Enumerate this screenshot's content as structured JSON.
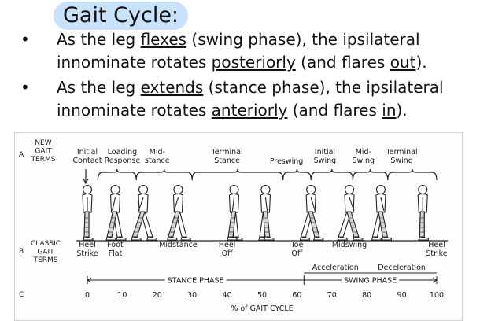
{
  "title": "Gait Cycle:",
  "bullets": [
    {
      "line1": [
        {
          "t": "As the leg ",
          "u": false
        },
        {
          "t": "flexes",
          "u": true
        },
        {
          "t": " (swing phase), the ipsilateral",
          "u": false
        }
      ],
      "line2": [
        {
          "t": "innominate rotates ",
          "u": false
        },
        {
          "t": "posteriorly",
          "u": true
        },
        {
          "t": " (and flares ",
          "u": false
        },
        {
          "t": "out",
          "u": true
        },
        {
          "t": ").",
          "u": false
        }
      ]
    },
    {
      "line1": [
        {
          "t": "As the leg ",
          "u": false
        },
        {
          "t": "extends",
          "u": true
        },
        {
          "t": " (stance phase), the ipsilateral",
          "u": false
        }
      ],
      "line2": [
        {
          "t": "innominate rotates ",
          "u": false
        },
        {
          "t": "anteriorly",
          "u": true
        },
        {
          "t": " (and flares ",
          "u": false
        },
        {
          "t": "in",
          "u": true
        },
        {
          "t": ").",
          "u": false
        }
      ]
    }
  ],
  "figure": {
    "row_a_letter": "A",
    "row_b_letter": "B",
    "row_c_letter": "C",
    "new_terms_heading": [
      "NEW",
      "GAIT",
      "TERMS"
    ],
    "new_terms": [
      {
        "lines": [
          "Initial",
          "Contact"
        ],
        "pct": 0
      },
      {
        "lines": [
          "Loading",
          "Response"
        ],
        "pct": 10
      },
      {
        "lines": [
          "Mid-",
          "stance"
        ],
        "pct": 20
      },
      {
        "lines": [
          "Terminal",
          "Stance"
        ],
        "pct": 40
      },
      {
        "lines": [
          "Preswing"
        ],
        "pct": 57
      },
      {
        "lines": [
          "Initial",
          "Swing"
        ],
        "pct": 68
      },
      {
        "lines": [
          "Mid-",
          "Swing"
        ],
        "pct": 79
      },
      {
        "lines": [
          "Terminal",
          "Swing"
        ],
        "pct": 90
      }
    ],
    "classic_terms_heading": [
      "CLASSIC",
      "GAIT",
      "TERMS"
    ],
    "classic_terms": [
      {
        "lines": [
          "Heel",
          "Strike"
        ],
        "pct": 0
      },
      {
        "lines": [
          "Foot",
          "Flat"
        ],
        "pct": 8
      },
      {
        "lines": [
          "Midstance"
        ],
        "pct": 26
      },
      {
        "lines": [
          "Heel",
          "Off"
        ],
        "pct": 40
      },
      {
        "lines": [
          "Toe",
          "Off"
        ],
        "pct": 60
      },
      {
        "lines": [
          "Midswing"
        ],
        "pct": 75
      },
      {
        "lines": [
          "Heel",
          "Strike"
        ],
        "pct": 100
      }
    ],
    "acceleration_label": "Acceleration",
    "deceleration_label": "Deceleration",
    "stance_phase_label": "STANCE PHASE",
    "swing_phase_label": "SWING PHASE",
    "axis_ticks": [
      0,
      10,
      20,
      30,
      40,
      50,
      60,
      70,
      80,
      90,
      100
    ],
    "axis_label": "% of GAIT CYCLE",
    "stance_end_pct": 62,
    "figure_positions_pct": [
      0,
      8,
      16,
      26,
      42,
      51,
      64,
      75,
      84,
      96
    ]
  }
}
